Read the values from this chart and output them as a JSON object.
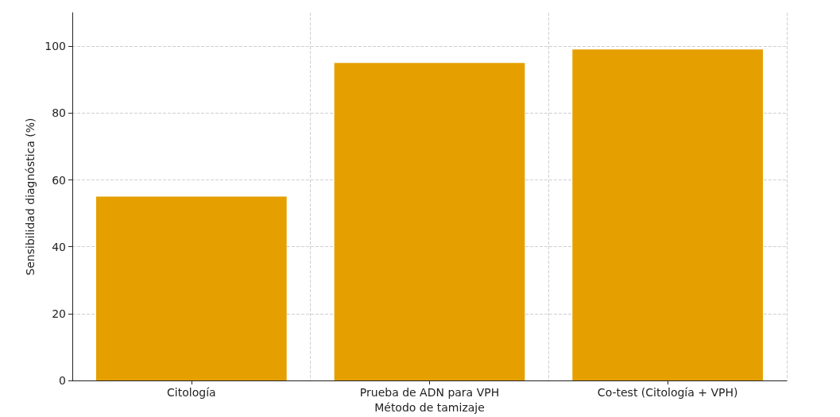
{
  "chart_data": {
    "type": "bar",
    "xlabel": "Método de tamizaje",
    "ylabel": "Sensibilidad diagnóstica (%)",
    "categories": [
      "Citología",
      "Prueba de ADN para VPH",
      "Co-test (Citología + VPH)"
    ],
    "values": [
      55,
      95,
      99
    ],
    "color": "#e5a000",
    "ylim": [
      0,
      110
    ],
    "yticks": [
      0,
      20,
      40,
      60,
      80,
      100
    ],
    "grid": true
  }
}
